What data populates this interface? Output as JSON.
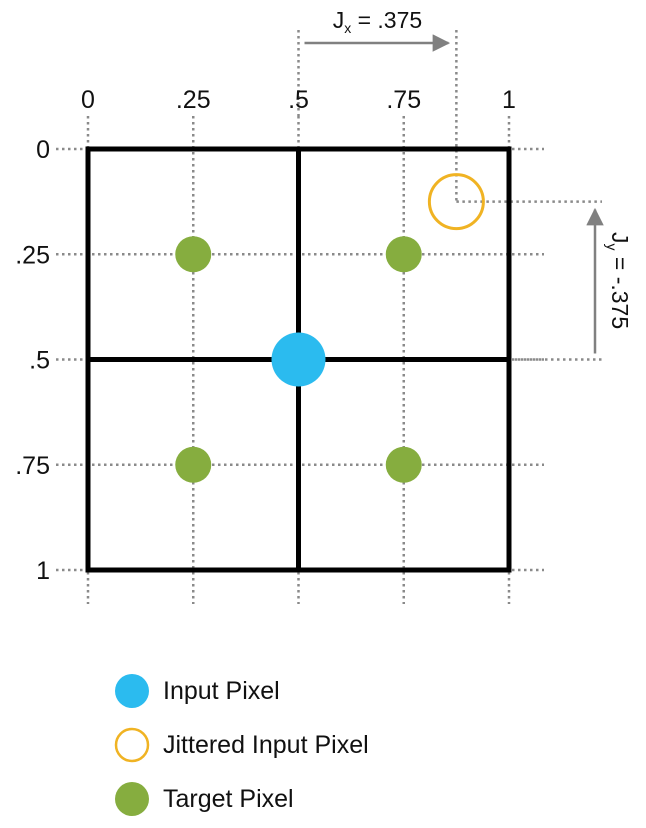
{
  "colors": {
    "grid": "#000000",
    "dotted": "#8a8a8a",
    "arrow": "#808080",
    "input_pixel": "#2bbbef",
    "jittered_pixel": "#f0b323",
    "target_pixel": "#86ad3f"
  },
  "axes": {
    "x_ticks": [
      {
        "value": 0,
        "label": "0"
      },
      {
        "value": 0.25,
        "label": ".25"
      },
      {
        "value": 0.5,
        "label": ".5"
      },
      {
        "value": 0.75,
        "label": ".75"
      },
      {
        "value": 1,
        "label": "1"
      }
    ],
    "y_ticks": [
      {
        "value": 0,
        "label": "0"
      },
      {
        "value": 0.25,
        "label": ".25"
      },
      {
        "value": 0.5,
        "label": ".5"
      },
      {
        "value": 0.75,
        "label": ".75"
      },
      {
        "value": 1,
        "label": "1"
      }
    ]
  },
  "points": {
    "input_pixel": {
      "x": 0.5,
      "y": 0.5
    },
    "jittered_pixel": {
      "x": 0.875,
      "y": 0.125
    },
    "target_pixels": [
      {
        "x": 0.25,
        "y": 0.25
      },
      {
        "x": 0.75,
        "y": 0.25
      },
      {
        "x": 0.25,
        "y": 0.75
      },
      {
        "x": 0.75,
        "y": 0.75
      }
    ]
  },
  "jitter": {
    "x_label_main": "J",
    "x_label_sub": "x",
    "x_label_rest": " = .375",
    "y_label_main": "J",
    "y_label_sub": "y",
    "y_label_rest": " = -.375"
  },
  "legend": {
    "input_pixel": "Input Pixel",
    "jittered_pixel": "Jittered Input Pixel",
    "target_pixel": "Target Pixel"
  }
}
